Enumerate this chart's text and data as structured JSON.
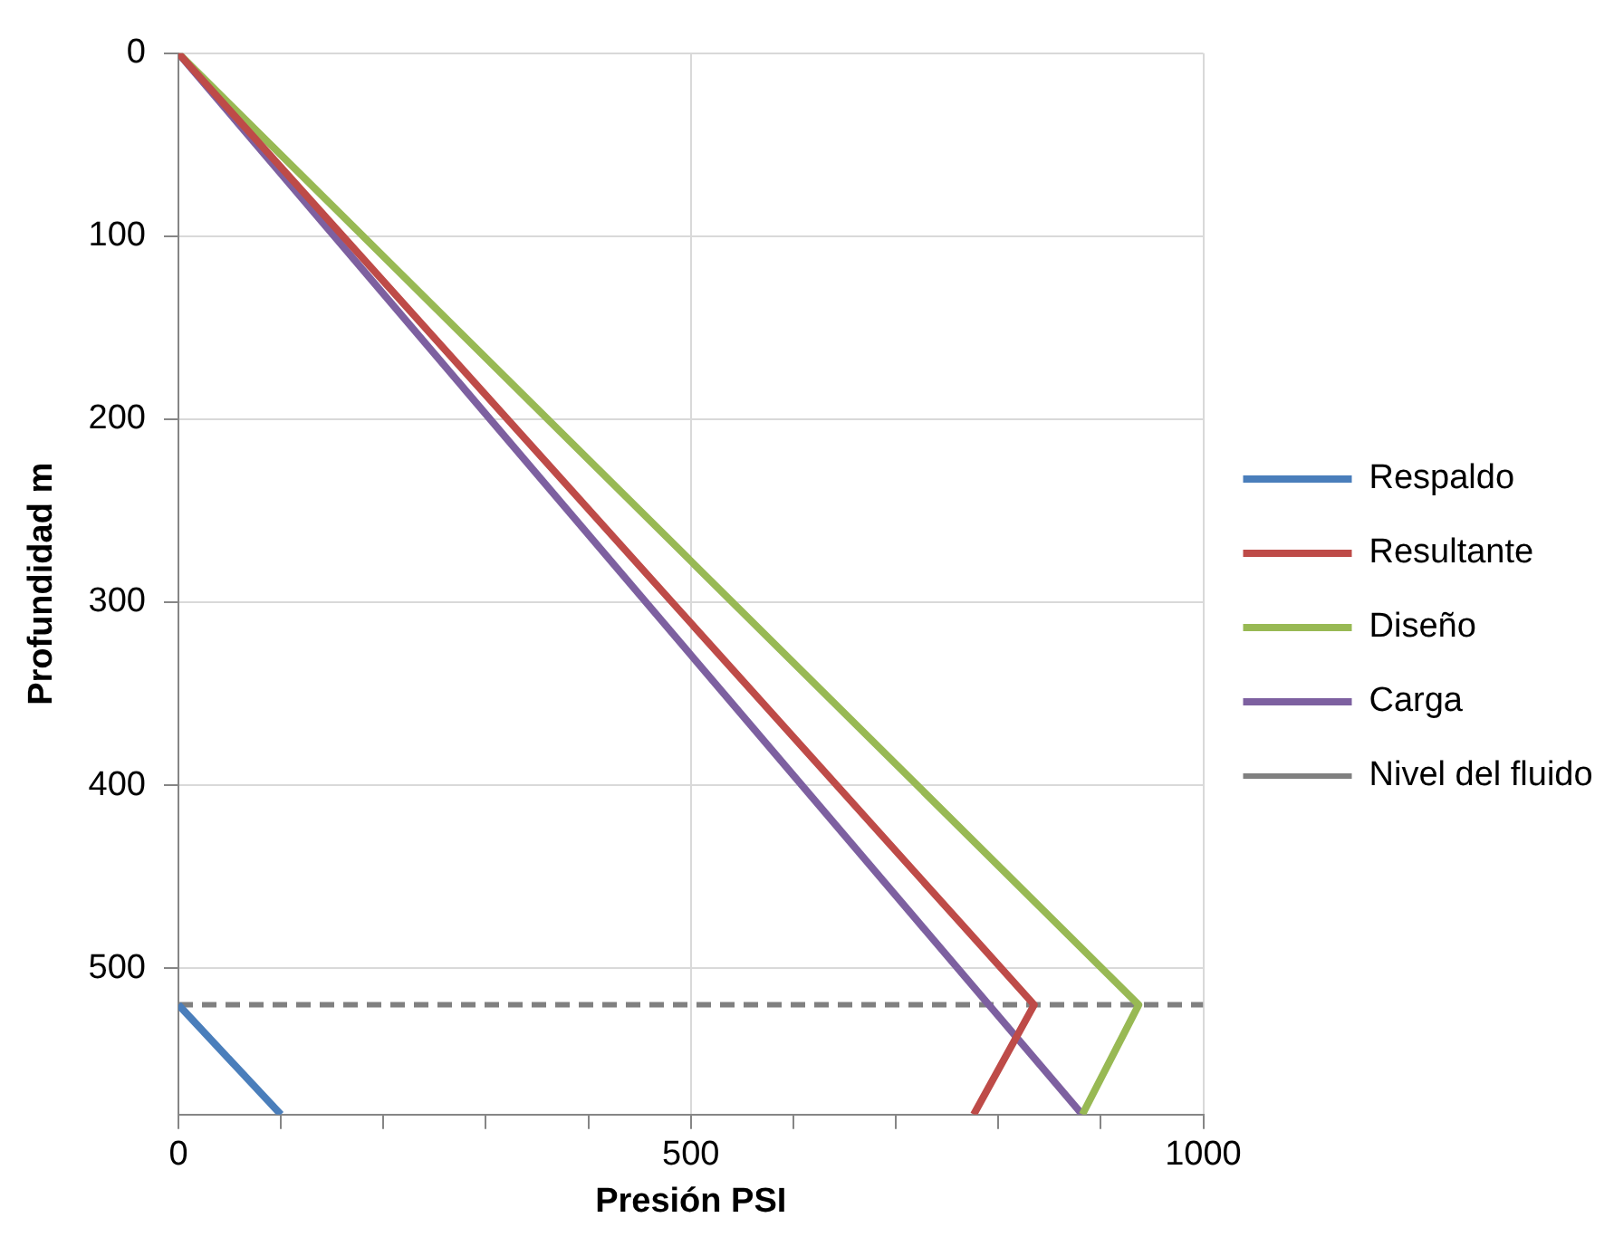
{
  "chart_data": {
    "type": "line",
    "xlabel": "Presión PSI",
    "ylabel": "Profundidad m",
    "xlim": [
      0,
      1000
    ],
    "xticks": [
      0,
      {
        "value": 100,
        "label": null
      },
      {
        "value": 200,
        "label": null
      },
      {
        "value": 300,
        "label": null
      },
      {
        "value": 400,
        "label": null
      },
      500,
      {
        "value": 600,
        "label": null
      },
      {
        "value": 700,
        "label": null
      },
      {
        "value": 800,
        "label": null
      },
      {
        "value": 900,
        "label": null
      },
      1000
    ],
    "ylim": [
      580,
      0
    ],
    "yticks": [
      0,
      100,
      200,
      300,
      400,
      500
    ],
    "series": [
      {
        "name": "Respaldo",
        "color": "#4a7ebb",
        "x": [
          0,
          100
        ],
        "values": [
          520,
          580
        ]
      },
      {
        "name": "Resultante",
        "color": "#be4b48",
        "x": [
          0,
          835,
          776
        ],
        "values": [
          0,
          520,
          580
        ]
      },
      {
        "name": "Diseño",
        "color": "#98b954",
        "x": [
          0,
          937,
          882
        ],
        "values": [
          0,
          520,
          580
        ]
      },
      {
        "name": "Carga",
        "color": "#7d60a0",
        "x": [
          0,
          882
        ],
        "values": [
          0,
          580
        ]
      }
    ],
    "ref_lines": [
      {
        "axis": "y",
        "value": 520,
        "label": "Nivel del fluido",
        "color": "#808080",
        "line_style": "dashed"
      }
    ],
    "grid": true,
    "legend": "right",
    "marker": "none",
    "line_style": "solid"
  }
}
